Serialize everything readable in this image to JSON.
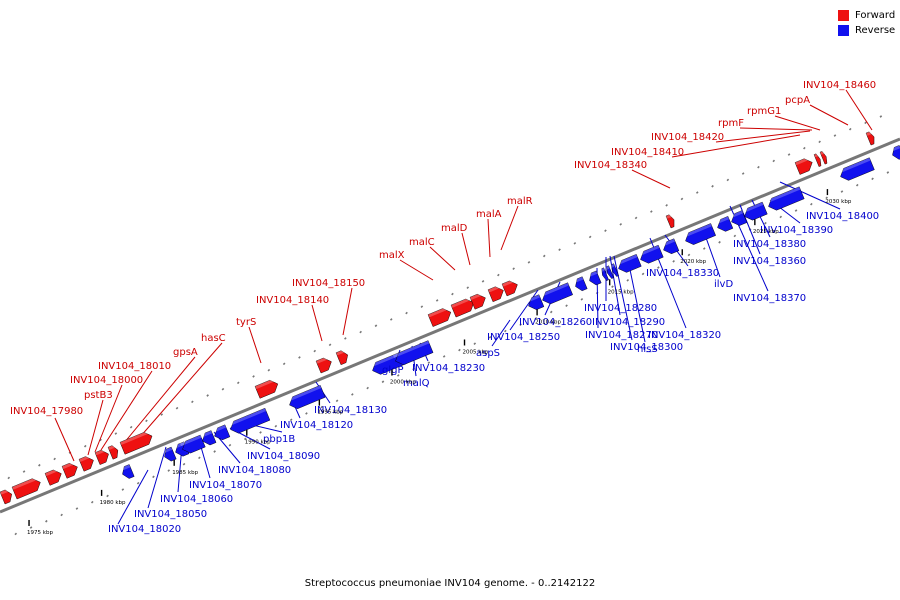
{
  "legend": {
    "forward_label": "Forward",
    "reverse_label": "Reverse",
    "forward_color": "#ee1111",
    "reverse_color": "#1111ee"
  },
  "caption": "Streptococcus pneumoniae INV104 genome. - 0..2142122",
  "colors": {
    "forward_label": "#cc0000",
    "reverse_label": "#0000cc",
    "backbone": "#777777",
    "tick": "#000000"
  },
  "ruler": [
    {
      "label": "1975 kbp",
      "pos": 1975
    },
    {
      "label": "1980 kbp",
      "pos": 1980
    },
    {
      "label": "1985 kbp",
      "pos": 1985
    },
    {
      "label": "1990 kbp",
      "pos": 1990
    },
    {
      "label": "1995 kbp",
      "pos": 1995
    },
    {
      "label": "2000 kbp",
      "pos": 2000
    },
    {
      "label": "2005 kbp",
      "pos": 2005
    },
    {
      "label": "2010 kbp",
      "pos": 2010
    },
    {
      "label": "2015 kbp",
      "pos": 2015
    },
    {
      "label": "2020 kbp",
      "pos": 2020
    },
    {
      "label": "2025 kbp",
      "pos": 2025
    },
    {
      "label": "2030 kbp",
      "pos": 2030
    }
  ],
  "forward_labels": [
    "INV104_17980",
    "pstB3",
    "INV104_18000",
    "INV104_18010",
    "gpsA",
    "hasC",
    "tyrS",
    "INV104_18140",
    "INV104_18150",
    "malX",
    "malC",
    "malD",
    "malA",
    "malR",
    "INV104_18340",
    "INV104_18410",
    "INV104_18420",
    "rpmF",
    "rpmG1",
    "pcpA",
    "INV104_18460"
  ],
  "reverse_labels": [
    "INV104_18020",
    "INV104_18050",
    "INV104_18060",
    "INV104_18070",
    "INV104_18080",
    "INV104_18090",
    "pbp1B",
    "INV104_18120",
    "INV104_18130",
    "glgP",
    "malQ",
    "INV104_18230",
    "aspS",
    "INV104_18250",
    "INV104_18260",
    "INV104_18270",
    "INV104_18280",
    "INV104_18290",
    "INV104_18300",
    "hisS",
    "INV104_18320",
    "INV104_18330",
    "ilvD",
    "INV104_18360",
    "INV104_18370",
    "INV104_18380",
    "INV104_18390",
    "INV104_18400"
  ]
}
